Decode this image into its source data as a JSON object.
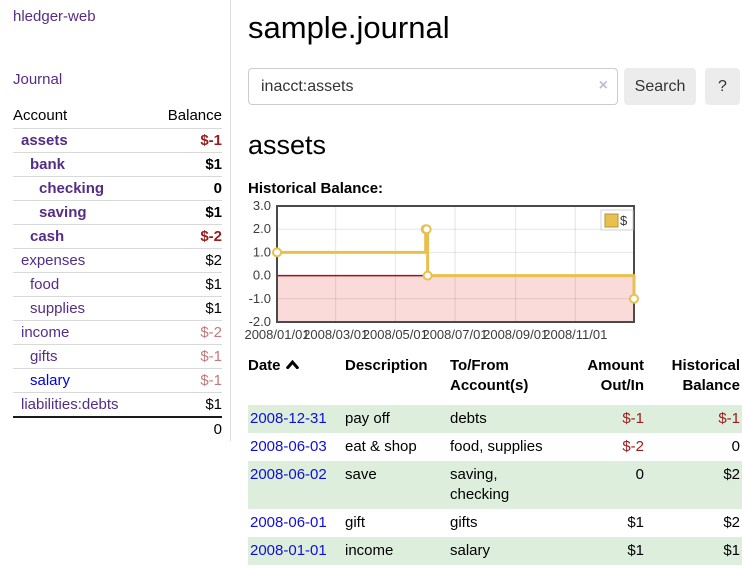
{
  "sidebar": {
    "app_title": "hledger-web",
    "journal_label": "Journal",
    "accounts_table": {
      "headers": {
        "account": "Account",
        "balance": "Balance"
      },
      "rows": [
        {
          "name": "assets",
          "balance": "$-1",
          "indent": 0,
          "bold": true,
          "neg": "strong"
        },
        {
          "name": "bank",
          "balance": "$1",
          "indent": 1,
          "bold": true,
          "neg": null
        },
        {
          "name": "checking",
          "balance": "0",
          "indent": 2,
          "bold": true,
          "neg": null
        },
        {
          "name": "saving",
          "balance": "$1",
          "indent": 2,
          "bold": true,
          "neg": null
        },
        {
          "name": "cash",
          "balance": "$-2",
          "indent": 1,
          "bold": true,
          "neg": "strong"
        },
        {
          "name": "expenses",
          "balance": "$2",
          "indent": 0,
          "bold": false,
          "neg": null
        },
        {
          "name": "food",
          "balance": "$1",
          "indent": 1,
          "bold": false,
          "neg": null
        },
        {
          "name": "supplies",
          "balance": "$1",
          "indent": 1,
          "bold": false,
          "neg": null
        },
        {
          "name": "income",
          "balance": "$-2",
          "indent": 0,
          "bold": false,
          "neg": "muted"
        },
        {
          "name": "gifts",
          "balance": "$-1",
          "indent": 1,
          "bold": false,
          "neg": "muted"
        },
        {
          "name": "salary",
          "balance": "$-1",
          "indent": 1,
          "bold": false,
          "neg": "muted",
          "blue": true
        },
        {
          "name": "liabilities:debts",
          "balance": "$1",
          "indent": 0,
          "bold": false,
          "neg": null
        }
      ],
      "total": "0"
    }
  },
  "header": {
    "title": "sample.journal"
  },
  "search": {
    "value": "inacct:assets",
    "clear_icon": "×",
    "button_label": "Search",
    "help_label": "?"
  },
  "account_page": {
    "heading": "assets",
    "chart_label": "Historical Balance:"
  },
  "chart_data": {
    "type": "line",
    "style": "step",
    "title": "Historical Balance:",
    "series": [
      {
        "name": "$",
        "color": "#e8c04f",
        "points": [
          [
            "2008-01-01",
            1
          ],
          [
            "2008-06-01",
            2
          ],
          [
            "2008-06-02",
            2
          ],
          [
            "2008-06-03",
            0
          ],
          [
            "2008-12-31",
            -1
          ]
        ]
      }
    ],
    "xlim": [
      "2008-01-01",
      "2008-12-31"
    ],
    "ylim": [
      -2,
      3
    ],
    "x_ticks": [
      "2008/01/01",
      "2008/03/01",
      "2008/05/01",
      "2008/07/01",
      "2008/09/01",
      "2008/11/01"
    ],
    "y_ticks": [
      3.0,
      2.0,
      1.0,
      0.0,
      -1.0,
      -2.0
    ],
    "grid": true,
    "legend": {
      "label": "$",
      "position": "top-right"
    },
    "negative_region_fill": "#fbdada",
    "zero_line_color": "#a11212"
  },
  "register": {
    "headers": {
      "date": "Date",
      "description": "Description",
      "accounts": "To/From Account(s)",
      "amount": "Amount Out/In",
      "balance": "Historical Balance"
    },
    "rows": [
      {
        "date": "2008-12-31",
        "description": "pay off",
        "accounts": "debts",
        "amount": "$-1",
        "balance": "$-1",
        "amount_neg": true,
        "balance_neg": true
      },
      {
        "date": "2008-06-03",
        "description": "eat & shop",
        "accounts": "food, supplies",
        "amount": "$-2",
        "balance": "0",
        "amount_neg": true,
        "balance_neg": false
      },
      {
        "date": "2008-06-02",
        "description": "save",
        "accounts": "saving, checking",
        "amount": "0",
        "balance": "$2",
        "amount_neg": false,
        "balance_neg": false
      },
      {
        "date": "2008-06-01",
        "description": "gift",
        "accounts": "gifts",
        "amount": "$1",
        "balance": "$2",
        "amount_neg": false,
        "balance_neg": false
      },
      {
        "date": "2008-01-01",
        "description": "income",
        "accounts": "salary",
        "amount": "$1",
        "balance": "$1",
        "amount_neg": false,
        "balance_neg": false
      }
    ]
  },
  "colors": {
    "link_purple": "#562d86",
    "link_blue": "#0f0fd6",
    "negative_strong": "#9c1a1a",
    "negative_muted": "#c27a7c",
    "row_green": "#ddeedd",
    "chart_gold": "#e8c04f",
    "chart_zero_line": "#a11212",
    "chart_negative_fill": "#fbdada"
  }
}
